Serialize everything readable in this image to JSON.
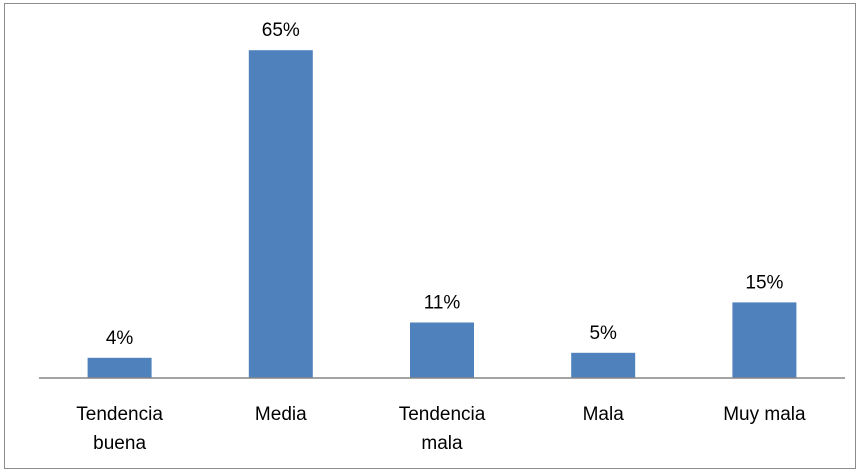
{
  "chart_data": {
    "type": "bar",
    "categories": [
      [
        "Tendencia",
        "buena"
      ],
      [
        "Media"
      ],
      [
        "Tendencia",
        "mala"
      ],
      [
        "Mala"
      ],
      [
        "Muy mala"
      ]
    ],
    "values": [
      4,
      65,
      11,
      5,
      15
    ],
    "value_labels": [
      "4%",
      "65%",
      "11%",
      "5%",
      "15%"
    ],
    "ylim": [
      0,
      70
    ],
    "grid": false,
    "legend": "none",
    "bar_color": "#4f81bd",
    "axis_color": "#868686"
  }
}
